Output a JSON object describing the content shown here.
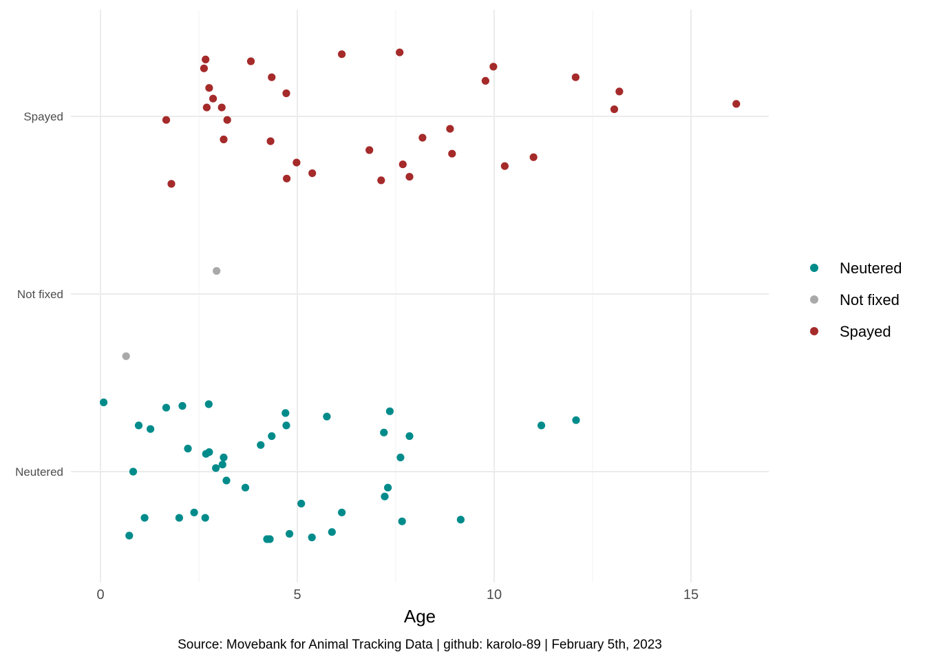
{
  "chart_data": {
    "type": "scatter",
    "title": "",
    "xlabel": "Age",
    "ylabel": "",
    "caption": "Source: Movebank for Animal Tracking Data | github: karolo-89 | February 5th, 2023",
    "xlim": [
      -0.5,
      17
    ],
    "x_ticks": [
      0,
      5,
      10,
      15
    ],
    "categories": [
      "Neutered",
      "Not fixed",
      "Spayed"
    ],
    "jitter_range": [
      -0.5,
      0.5
    ],
    "grid": true,
    "legend_position": "right",
    "series": [
      {
        "name": "Neutered",
        "color": "#008B8B",
        "points": [
          {
            "x": 0.08,
            "y": 0.39
          },
          {
            "x": 0.73,
            "y": -0.36
          },
          {
            "x": 0.83,
            "y": 0.0
          },
          {
            "x": 0.97,
            "y": 0.26
          },
          {
            "x": 1.12,
            "y": -0.26
          },
          {
            "x": 1.27,
            "y": 0.24
          },
          {
            "x": 1.67,
            "y": 0.36
          },
          {
            "x": 2.0,
            "y": -0.26
          },
          {
            "x": 2.08,
            "y": 0.37
          },
          {
            "x": 2.22,
            "y": 0.13
          },
          {
            "x": 2.38,
            "y": -0.23
          },
          {
            "x": 2.66,
            "y": -0.26
          },
          {
            "x": 2.68,
            "y": 0.1
          },
          {
            "x": 2.75,
            "y": 0.38
          },
          {
            "x": 2.76,
            "y": 0.11
          },
          {
            "x": 2.93,
            "y": 0.02
          },
          {
            "x": 3.1,
            "y": 0.04
          },
          {
            "x": 3.13,
            "y": 0.08
          },
          {
            "x": 3.2,
            "y": -0.05
          },
          {
            "x": 3.68,
            "y": -0.09
          },
          {
            "x": 4.07,
            "y": 0.15
          },
          {
            "x": 4.23,
            "y": -0.38
          },
          {
            "x": 4.3,
            "y": -0.38
          },
          {
            "x": 4.35,
            "y": 0.2
          },
          {
            "x": 4.7,
            "y": 0.33
          },
          {
            "x": 4.72,
            "y": 0.26
          },
          {
            "x": 4.8,
            "y": -0.35
          },
          {
            "x": 5.1,
            "y": -0.18
          },
          {
            "x": 5.37,
            "y": -0.37
          },
          {
            "x": 5.75,
            "y": 0.31
          },
          {
            "x": 5.88,
            "y": -0.34
          },
          {
            "x": 6.13,
            "y": -0.23
          },
          {
            "x": 7.2,
            "y": 0.22
          },
          {
            "x": 7.22,
            "y": -0.14
          },
          {
            "x": 7.3,
            "y": -0.09
          },
          {
            "x": 7.35,
            "y": 0.34
          },
          {
            "x": 7.62,
            "y": 0.08
          },
          {
            "x": 7.66,
            "y": -0.28
          },
          {
            "x": 7.85,
            "y": 0.2
          },
          {
            "x": 9.15,
            "y": -0.27
          },
          {
            "x": 11.2,
            "y": 0.26
          },
          {
            "x": 12.08,
            "y": 0.29
          }
        ]
      },
      {
        "name": "Not fixed",
        "color": "#A9A9A9",
        "points": [
          {
            "x": 0.65,
            "y": -0.35
          },
          {
            "x": 2.95,
            "y": 0.13
          }
        ]
      },
      {
        "name": "Spayed",
        "color": "#A52A2A",
        "points": [
          {
            "x": 1.67,
            "y": -0.02
          },
          {
            "x": 1.8,
            "y": -0.38
          },
          {
            "x": 2.63,
            "y": 0.27
          },
          {
            "x": 2.67,
            "y": 0.32
          },
          {
            "x": 2.7,
            "y": 0.05
          },
          {
            "x": 2.76,
            "y": 0.16
          },
          {
            "x": 2.86,
            "y": 0.1
          },
          {
            "x": 3.08,
            "y": 0.05
          },
          {
            "x": 3.13,
            "y": -0.13
          },
          {
            "x": 3.22,
            "y": -0.02
          },
          {
            "x": 3.82,
            "y": 0.31
          },
          {
            "x": 4.32,
            "y": -0.14
          },
          {
            "x": 4.35,
            "y": 0.22
          },
          {
            "x": 4.72,
            "y": 0.13
          },
          {
            "x": 4.73,
            "y": -0.35
          },
          {
            "x": 4.98,
            "y": -0.26
          },
          {
            "x": 5.38,
            "y": -0.32
          },
          {
            "x": 6.13,
            "y": 0.35
          },
          {
            "x": 6.83,
            "y": -0.19
          },
          {
            "x": 7.13,
            "y": -0.36
          },
          {
            "x": 7.6,
            "y": 0.36
          },
          {
            "x": 7.68,
            "y": -0.27
          },
          {
            "x": 7.85,
            "y": -0.34
          },
          {
            "x": 8.18,
            "y": -0.12
          },
          {
            "x": 8.88,
            "y": -0.07
          },
          {
            "x": 8.93,
            "y": -0.21
          },
          {
            "x": 9.78,
            "y": 0.2
          },
          {
            "x": 9.98,
            "y": 0.28
          },
          {
            "x": 10.27,
            "y": -0.28
          },
          {
            "x": 11.0,
            "y": -0.23
          },
          {
            "x": 12.07,
            "y": 0.22
          },
          {
            "x": 13.05,
            "y": 0.04
          },
          {
            "x": 13.18,
            "y": 0.14
          },
          {
            "x": 16.15,
            "y": 0.07
          }
        ]
      }
    ]
  }
}
